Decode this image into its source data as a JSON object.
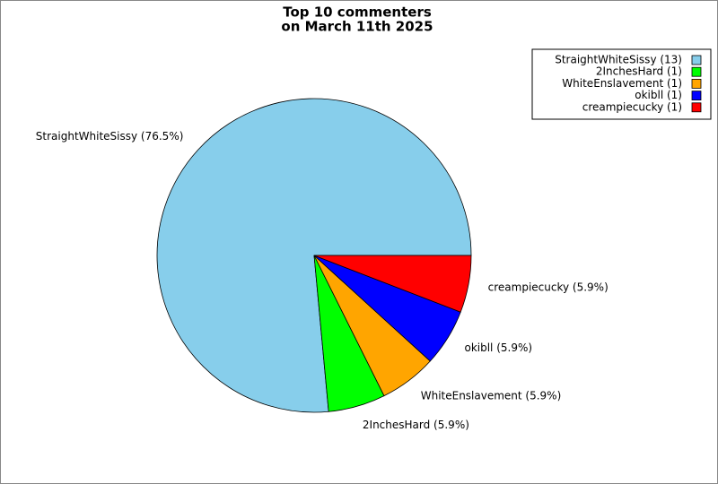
{
  "chart_data": {
    "type": "pie",
    "title": [
      "Top 10 commenters",
      "on March 11th 2025"
    ],
    "categories": [
      "StraightWhiteSissy",
      "2InchesHard",
      "WhiteEnslavement",
      "okibll",
      "creampiecucky"
    ],
    "values": [
      13,
      1,
      1,
      1,
      1
    ],
    "legend_labels": [
      "StraightWhiteSissy (13)",
      "2InchesHard (1)",
      "WhiteEnslavement (1)",
      "okibll (1)",
      "creampiecucky (1)"
    ],
    "value_labels": [
      "StraightWhiteSissy (76.5%)",
      "2InchesHard (5.9%)",
      "WhiteEnslavement (5.9%)",
      "okibll (5.9%)",
      "creampiecucky (5.9%)"
    ],
    "colors": [
      "#87ceeb",
      "#00ff00",
      "#ffa500",
      "#0000ff",
      "#ff0000"
    ],
    "legend": "top-right"
  }
}
